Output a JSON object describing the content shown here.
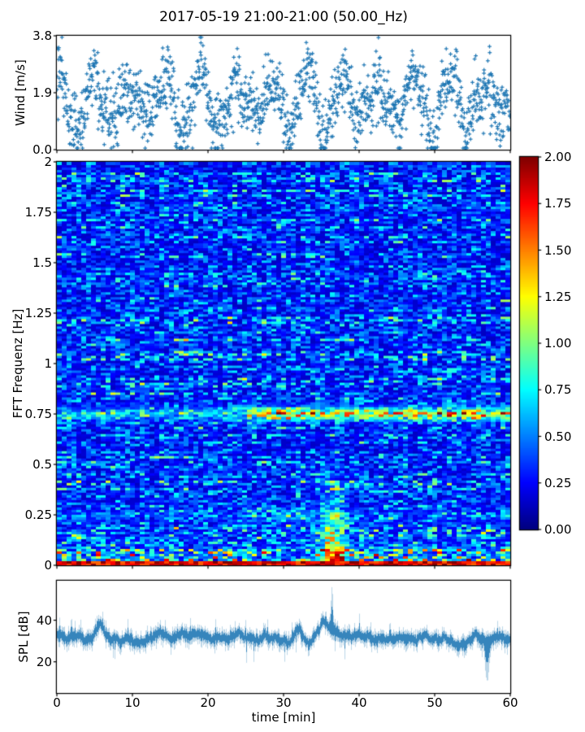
{
  "figure": {
    "title": "2017-05-19 21:00-21:00 (50.00_Hz)",
    "xlabel": "time [min]",
    "background_color": "#ffffff",
    "text_color": "#000000",
    "accent_color": "#1f77b4"
  },
  "chart_data": [
    {
      "id": "wind",
      "type": "scatter",
      "ylabel": "Wind [m/s]",
      "marker": "plus",
      "color": "#1f77b4",
      "xlim": [
        0,
        60
      ],
      "ylim": [
        0,
        3.8
      ],
      "yticks": [
        {
          "v": 0,
          "label": "0.0"
        },
        {
          "v": 1.9,
          "label": "1.9"
        },
        {
          "v": 3.8,
          "label": "3.8"
        }
      ],
      "n_points": 1600,
      "seed": 42,
      "pattern": {
        "description": "wind speed gusts oscillating between ~0.2 and ~3.5 m/s in quasi-periodic clusters every ~4-5 min over 60 min",
        "mean": 1.6,
        "osc_amp": 0.95,
        "osc_period_min": 4.7,
        "amp_mod_period_min": 16,
        "noise_sd": 0.55
      }
    },
    {
      "id": "fft-spectrogram",
      "type": "heatmap",
      "ylabel": "FFT Frequenz [Hz]",
      "colormap": "jet",
      "vmin": 0,
      "vmax": 2,
      "xlim": [
        0,
        60
      ],
      "ylim": [
        0,
        2
      ],
      "yticks": [
        {
          "v": 0,
          "label": "0"
        },
        {
          "v": 0.25,
          "label": "0.25"
        },
        {
          "v": 0.5,
          "label": "0.5"
        },
        {
          "v": 0.75,
          "label": "0.75"
        },
        {
          "v": 1,
          "label": "1"
        },
        {
          "v": 1.25,
          "label": "1.25"
        },
        {
          "v": 1.5,
          "label": "1.5"
        },
        {
          "v": 1.75,
          "label": "1.75"
        },
        {
          "v": 2,
          "label": "2"
        }
      ],
      "grid_rows": 165,
      "grid_cols": 93,
      "seed": 11,
      "base_level": 0.3,
      "features": [
        {
          "name": "persistent-band",
          "freq_hz": 0.755,
          "sigma_hz": 0.022,
          "t_range": [
            0,
            60
          ],
          "strength": 0.85,
          "note": "weak before 25 min, strongest 45-60 min with orange/red cells"
        },
        {
          "name": "secondary-band",
          "freq_hz": 0.25,
          "sigma_hz": 0.018,
          "t_range": [
            25,
            40
          ],
          "strength": 0.55
        },
        {
          "name": "surface-hot-rows",
          "freq_range": [
            0,
            0.03
          ],
          "strength": 1.9,
          "note": "continuous dark-red/red bottom rows with yellow segments"
        },
        {
          "name": "low-freq-hot-cells",
          "freq_range": [
            0.03,
            0.09
          ],
          "strength": 1.1
        },
        {
          "name": "event-blob",
          "t_range": [
            33.5,
            39.5
          ],
          "freq_range": [
            0,
            0.45
          ],
          "strength": 1.6,
          "note": "dark-red patch ~36-38 min below 0.15 Hz with green/yellow halo"
        }
      ]
    },
    {
      "id": "spl",
      "type": "line",
      "ylabel": "SPL [dB]",
      "color": "#1f77b4",
      "xlim": [
        0,
        60
      ],
      "ylim": [
        5,
        59
      ],
      "yticks": [
        {
          "v": 20,
          "label": "20"
        },
        {
          "v": 40,
          "label": "40"
        }
      ],
      "seed": 3,
      "mean_db": 31.5,
      "band_halfwidth_db": 5,
      "features": [
        {
          "type": "peak",
          "t": 5.7,
          "amp_db": 8
        },
        {
          "type": "peak",
          "t": 13.6,
          "amp_db": 5
        },
        {
          "type": "peak",
          "t": 24.0,
          "amp_db": 4
        },
        {
          "type": "peak",
          "t": 31.8,
          "amp_db": 7
        },
        {
          "type": "peak",
          "t": 35.2,
          "amp_db": 7
        },
        {
          "type": "spike",
          "t": 36.35,
          "peak_db": 52
        },
        {
          "type": "dip",
          "t": 56.9,
          "min_db": 14
        }
      ]
    }
  ],
  "xticks": [
    {
      "v": 0,
      "label": "0"
    },
    {
      "v": 10,
      "label": "10"
    },
    {
      "v": 20,
      "label": "20"
    },
    {
      "v": 30,
      "label": "30"
    },
    {
      "v": 40,
      "label": "40"
    },
    {
      "v": 50,
      "label": "50"
    },
    {
      "v": 60,
      "label": "60"
    }
  ],
  "colorbar": {
    "vmin": 0,
    "vmax": 2,
    "colormap": "jet",
    "ticks": [
      {
        "v": 0,
        "label": "0.00"
      },
      {
        "v": 0.25,
        "label": "0.25"
      },
      {
        "v": 0.5,
        "label": "0.50"
      },
      {
        "v": 0.75,
        "label": "0.75"
      },
      {
        "v": 1,
        "label": "1.00"
      },
      {
        "v": 1.25,
        "label": "1.25"
      },
      {
        "v": 1.5,
        "label": "1.50"
      },
      {
        "v": 1.75,
        "label": "1.75"
      },
      {
        "v": 2,
        "label": "2.00"
      }
    ]
  }
}
